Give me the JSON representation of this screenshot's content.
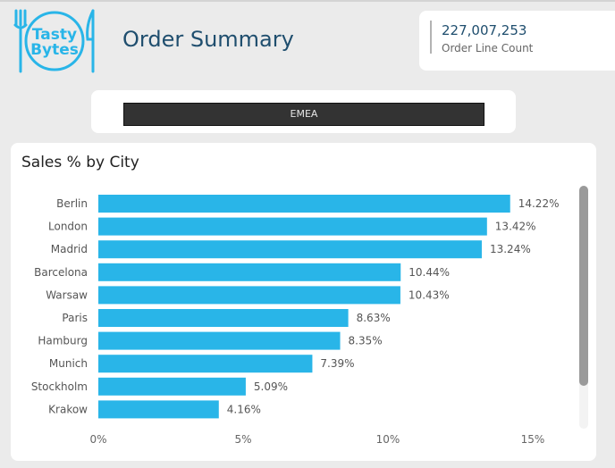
{
  "header": {
    "logo_line1": "Tasty",
    "logo_line2": "Bytes",
    "title": "Order Summary"
  },
  "kpi": {
    "value": "227,007,253",
    "label": "Order Line Count"
  },
  "filter": {
    "selected": "EMEA"
  },
  "colors": {
    "bar": "#29b5e8",
    "brand": "#29b5e8",
    "title": "#1f4e6e"
  },
  "chart_data": {
    "type": "bar",
    "orientation": "horizontal",
    "title": "Sales % by City",
    "categories": [
      "Berlin",
      "London",
      "Madrid",
      "Barcelona",
      "Warsaw",
      "Paris",
      "Hamburg",
      "Munich",
      "Stockholm",
      "Krakow"
    ],
    "values": [
      14.22,
      13.42,
      13.24,
      10.44,
      10.43,
      8.63,
      8.35,
      7.39,
      5.09,
      4.16
    ],
    "value_labels": [
      "14.22%",
      "13.42%",
      "13.24%",
      "10.44%",
      "10.43%",
      "8.63%",
      "8.35%",
      "7.39%",
      "5.09%",
      "4.16%"
    ],
    "xticks": [
      0,
      5,
      10,
      15
    ],
    "xtick_labels": [
      "0%",
      "5%",
      "10%",
      "15%"
    ],
    "xlim": [
      0,
      15
    ],
    "grid": false
  }
}
